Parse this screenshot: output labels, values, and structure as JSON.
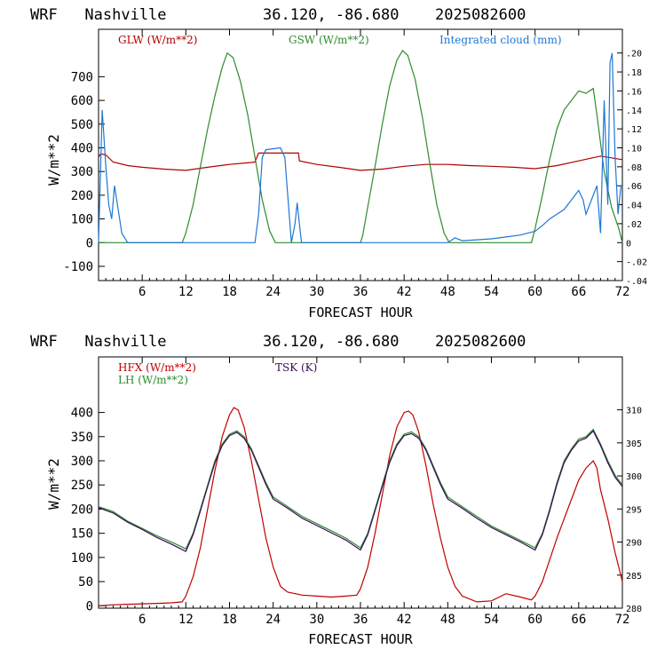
{
  "colors": {
    "glw": "#b00000",
    "gsw": "#2e8b2e",
    "cloud": "#1f77d4",
    "hfx": "#c00000",
    "lh": "#2e8b2e",
    "tsk": "#3a0a5a",
    "axis": "#000000"
  },
  "chart_data": [
    {
      "type": "line",
      "title_left": "WRF   Nashville",
      "title_coords": "36.120, -86.680",
      "title_date": "2025082600",
      "xlabel": "FORECAST HOUR",
      "ylabel": "W/m**2",
      "xlim": [
        0,
        72
      ],
      "ylim": [
        -160,
        900
      ],
      "y2lim": [
        -0.04,
        0.225
      ],
      "x_ticks": [
        "6",
        "12",
        "18",
        "24",
        "30",
        "36",
        "42",
        "48",
        "54",
        "60",
        "66",
        "72"
      ],
      "y_ticks": [
        "-100",
        "0",
        "100",
        "200",
        "300",
        "400",
        "500",
        "600",
        "700"
      ],
      "y2_ticks": [
        "-.04",
        "-.02",
        "0",
        ".02",
        ".04",
        ".06",
        ".08",
        ".10",
        ".12",
        ".14",
        ".16",
        ".18",
        ".20"
      ],
      "grid": false,
      "legend_position": "top",
      "series": [
        {
          "name": "GLW (W/m**2)",
          "axis": "left",
          "x": [
            0,
            0.3,
            1,
            2,
            4,
            6,
            9,
            12,
            15,
            18,
            21,
            21.5,
            22,
            27.5,
            27.6,
            30,
            33,
            36,
            39,
            42,
            45,
            48,
            51,
            54,
            57,
            60,
            63,
            66,
            69,
            72
          ],
          "y": [
            360,
            375,
            370,
            340,
            325,
            318,
            310,
            305,
            318,
            330,
            338,
            340,
            378,
            378,
            345,
            330,
            318,
            305,
            310,
            322,
            330,
            330,
            325,
            322,
            318,
            312,
            325,
            345,
            365,
            350
          ]
        },
        {
          "name": "GSW (W/m**2)",
          "axis": "left",
          "x": [
            0,
            11.5,
            12,
            13,
            14,
            15,
            16,
            17,
            17.7,
            18.5,
            19.5,
            20.5,
            21.5,
            22.5,
            23.5,
            24.3,
            36,
            36.3,
            37,
            38,
            39,
            40,
            41,
            41.8,
            42.5,
            43.5,
            44.5,
            45.5,
            46.5,
            47.5,
            48.2,
            59.5,
            60,
            61,
            62,
            63,
            64,
            65,
            66,
            67,
            68,
            68.5,
            69.5,
            70.5,
            71.5,
            72
          ],
          "y": [
            0,
            0,
            40,
            160,
            320,
            480,
            620,
            740,
            800,
            780,
            680,
            540,
            360,
            180,
            50,
            0,
            0,
            30,
            150,
            320,
            500,
            660,
            770,
            810,
            790,
            690,
            530,
            340,
            160,
            40,
            0,
            0,
            60,
            200,
            350,
            480,
            560,
            600,
            640,
            630,
            650,
            540,
            300,
            150,
            60,
            0
          ]
        },
        {
          "name": "Integrated cloud (mm)",
          "axis": "right",
          "x": [
            0,
            0.5,
            1,
            1.4,
            1.8,
            2.2,
            2.8,
            3.2,
            3.6,
            4,
            21.5,
            22,
            22.5,
            23,
            25,
            25.6,
            26,
            26.5,
            27,
            27.3,
            27.6,
            27.9,
            28.2,
            48,
            49,
            50,
            52,
            54,
            56,
            58,
            60,
            61,
            62,
            63,
            64,
            65,
            66,
            66.6,
            67,
            67.5,
            68,
            68.5,
            69,
            69.5,
            70,
            70.3,
            70.6,
            71,
            71.4,
            71.8,
            72
          ],
          "y": [
            0,
            0.14,
            0.08,
            0.04,
            0.025,
            0.06,
            0.03,
            0.01,
            0.005,
            0,
            0,
            0.03,
            0.09,
            0.098,
            0.1,
            0.09,
            0.05,
            0,
            0.02,
            0.042,
            0.02,
            0,
            0,
            0,
            0.005,
            0.002,
            0.003,
            0.004,
            0.006,
            0.008,
            0.012,
            0.018,
            0.025,
            0.03,
            0.035,
            0.045,
            0.055,
            0.045,
            0.03,
            0.04,
            0.05,
            0.06,
            0.01,
            0.15,
            0.04,
            0.19,
            0.2,
            0.09,
            0.03,
            0.06,
            0.06
          ]
        }
      ]
    },
    {
      "type": "line",
      "title_left": "WRF   Nashville",
      "title_coords": "36.120, -86.680",
      "title_date": "2025082600",
      "xlabel": "FORECAST HOUR",
      "ylabel": "W/m**2",
      "xlim": [
        0,
        72
      ],
      "ylim": [
        -5,
        515
      ],
      "y2lim": [
        280,
        318
      ],
      "x_ticks": [
        "6",
        "12",
        "18",
        "24",
        "30",
        "36",
        "42",
        "48",
        "54",
        "60",
        "66",
        "72"
      ],
      "y_ticks": [
        "0",
        "50",
        "100",
        "150",
        "200",
        "250",
        "300",
        "350",
        "400"
      ],
      "y2_ticks": [
        "280",
        "285",
        "290",
        "295",
        "300",
        "305",
        "310"
      ],
      "grid": false,
      "legend_position": "top",
      "series": [
        {
          "name": "HFX (W/m**2)",
          "axis": "left",
          "x": [
            0,
            2,
            4,
            6,
            8,
            10,
            11.5,
            12,
            13,
            14,
            15,
            16,
            17,
            18,
            18.6,
            19.2,
            20,
            21,
            22,
            23,
            24,
            25,
            26,
            28,
            30,
            32,
            34,
            35.5,
            36,
            37,
            38,
            39,
            40,
            41,
            42,
            42.6,
            43.2,
            44,
            45,
            46,
            47,
            48,
            49,
            50,
            52,
            54,
            56,
            58,
            59.5,
            60,
            61,
            62,
            63,
            64,
            65,
            66,
            67,
            68,
            68.5,
            69,
            70,
            71,
            72
          ],
          "y": [
            0,
            2,
            3,
            4,
            5,
            6,
            8,
            20,
            60,
            120,
            200,
            280,
            350,
            395,
            410,
            405,
            370,
            300,
            220,
            140,
            80,
            40,
            28,
            22,
            20,
            18,
            20,
            22,
            35,
            80,
            150,
            230,
            310,
            370,
            400,
            403,
            395,
            360,
            290,
            210,
            140,
            80,
            40,
            20,
            8,
            10,
            25,
            18,
            12,
            20,
            50,
            95,
            140,
            180,
            220,
            260,
            285,
            300,
            285,
            240,
            180,
            110,
            50
          ]
        },
        {
          "name": "LH (W/m**2)",
          "axis": "left",
          "x": [
            0,
            2,
            4,
            6,
            8,
            10,
            12,
            13,
            14,
            15,
            16,
            17,
            18,
            19,
            20,
            21,
            22,
            23,
            24,
            26,
            28,
            30,
            32,
            34,
            36,
            37,
            38,
            39,
            40,
            41,
            42,
            43,
            44,
            45,
            46,
            47,
            48,
            50,
            52,
            54,
            56,
            58,
            60,
            61,
            62,
            63,
            64,
            65,
            66,
            67,
            68,
            69,
            70,
            71,
            72
          ],
          "y": [
            205,
            195,
            175,
            160,
            145,
            132,
            118,
            150,
            200,
            250,
            300,
            335,
            355,
            362,
            350,
            325,
            290,
            255,
            225,
            205,
            185,
            170,
            155,
            140,
            120,
            150,
            200,
            250,
            300,
            335,
            355,
            360,
            350,
            325,
            290,
            255,
            225,
            205,
            185,
            165,
            150,
            135,
            120,
            150,
            200,
            255,
            300,
            325,
            345,
            350,
            365,
            335,
            300,
            270,
            250
          ]
        },
        {
          "name": "TSK (K)",
          "axis": "right",
          "x": [
            0,
            2,
            4,
            6,
            8,
            10,
            12,
            13,
            14,
            15,
            16,
            17,
            18,
            19,
            20,
            21,
            22,
            23,
            24,
            26,
            28,
            30,
            32,
            34,
            36,
            37,
            38,
            39,
            40,
            41,
            42,
            43,
            44,
            45,
            46,
            47,
            48,
            50,
            52,
            54,
            56,
            58,
            60,
            61,
            62,
            63,
            64,
            65,
            66,
            67,
            68,
            69,
            70,
            71,
            72
          ],
          "y": [
            295.2,
            294.4,
            293.0,
            291.9,
            290.7,
            289.7,
            288.6,
            291.1,
            294.7,
            298.4,
            302.0,
            304.6,
            306.1,
            306.6,
            305.7,
            303.9,
            301.3,
            298.7,
            296.5,
            295.1,
            293.6,
            292.5,
            291.4,
            290.3,
            288.8,
            291.1,
            294.7,
            298.4,
            302.0,
            304.6,
            306.1,
            306.4,
            305.7,
            303.9,
            301.3,
            298.7,
            296.5,
            295.1,
            293.6,
            292.2,
            291.1,
            290.0,
            288.8,
            291.1,
            294.7,
            298.7,
            302.0,
            303.9,
            305.3,
            305.7,
            306.8,
            304.6,
            302.0,
            299.8,
            298.4
          ]
        }
      ]
    }
  ]
}
